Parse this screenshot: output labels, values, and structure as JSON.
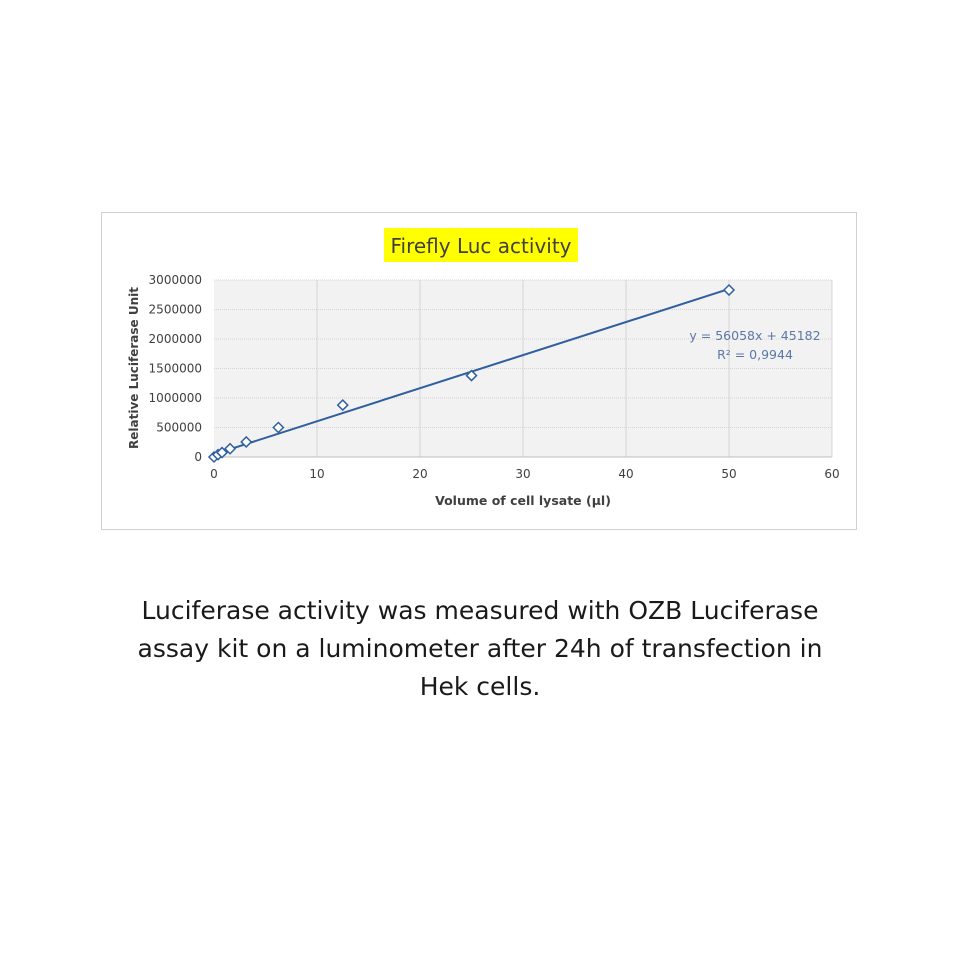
{
  "chart_data": {
    "type": "scatter",
    "title": "Firefly Luc activity",
    "title_highlight": "#ffff00",
    "xlabel": "Volume of cell lysate (µl)",
    "ylabel": "Relative Luciferase Unit",
    "xlim": [
      0,
      60
    ],
    "ylim": [
      0,
      3000000
    ],
    "xticks": [
      "0",
      "10",
      "20",
      "30",
      "40",
      "50",
      "60"
    ],
    "yticks": [
      "0",
      "500000",
      "1000000",
      "1500000",
      "2000000",
      "2500000",
      "3000000"
    ],
    "grid": true,
    "marker": "diamond-open",
    "series_color": "#2f5f9e",
    "points": [
      {
        "x": 0,
        "y": 0
      },
      {
        "x": 0.39,
        "y": 40000
      },
      {
        "x": 0.78,
        "y": 75000
      },
      {
        "x": 1.56,
        "y": 140000
      },
      {
        "x": 3.13,
        "y": 255000
      },
      {
        "x": 6.25,
        "y": 500000
      },
      {
        "x": 12.5,
        "y": 880000
      },
      {
        "x": 25,
        "y": 1380000
      },
      {
        "x": 50,
        "y": 2830000
      }
    ],
    "trendline": {
      "slope": 56058,
      "intercept": 45182,
      "x_range": [
        0,
        50
      ],
      "equation": "y = 56058x + 45182",
      "r_squared": "R² = 0,9944"
    }
  },
  "caption": {
    "lines": [
      "Luciferase activity was measured with OZB Luciferase",
      "assay kit on a luminometer after 24h of transfection in",
      "Hek cells."
    ]
  }
}
